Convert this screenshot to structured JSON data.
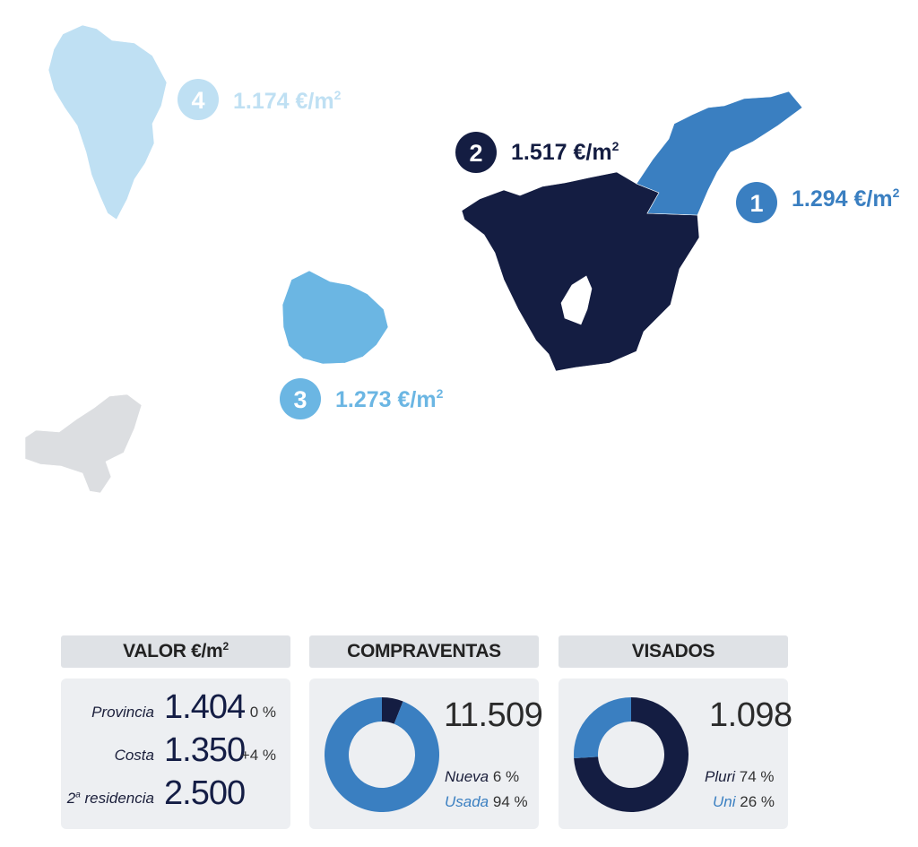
{
  "map": {
    "islands": [
      {
        "id": "tenerife",
        "rank": "2",
        "price": "1.517 €/m",
        "sup": "2",
        "color": "#141d42"
      },
      {
        "id": "tenerife-north",
        "rank": "1",
        "price": "1.294 €/m",
        "sup": "2",
        "color": "#3a7fc1"
      },
      {
        "id": "la-gomera",
        "rank": "3",
        "price": "1.273 €/m",
        "sup": "2",
        "color": "#6bb6e3"
      },
      {
        "id": "la-palma",
        "rank": "4",
        "price": "1.174 €/m",
        "sup": "2",
        "color": "#bfe0f3"
      },
      {
        "id": "el-hierro",
        "color": "#dcdee1"
      }
    ]
  },
  "valor": {
    "header": "VALOR €/m",
    "header_sup": "2",
    "rows": [
      {
        "label": "Provincia",
        "value": "1.404",
        "change": "0 %"
      },
      {
        "label": "Costa",
        "value": "1.350",
        "change": "+4 %"
      },
      {
        "label": "2",
        "label_sup": "a",
        "label_rest": " residencia",
        "value": "2.500",
        "change": ""
      }
    ]
  },
  "compraventas": {
    "header": "COMPRAVENTAS",
    "total": "11.509",
    "items": [
      {
        "label": "Nueva",
        "pct": "6 %",
        "value": 6,
        "color": "#141d42",
        "label_color": "#1b1f3b"
      },
      {
        "label": "Usada",
        "pct": "94 %",
        "value": 94,
        "color": "#3a7fc1",
        "label_color": "#3a7fc1"
      }
    ]
  },
  "visados": {
    "header": "VISADOS",
    "total": "1.098",
    "items": [
      {
        "label": "Pluri",
        "pct": "74 %",
        "value": 74,
        "color": "#141d42",
        "label_color": "#1b1f3b"
      },
      {
        "label": "Uni",
        "pct": "26 %",
        "value": 26,
        "color": "#3a7fc1",
        "label_color": "#3a7fc1"
      }
    ]
  }
}
